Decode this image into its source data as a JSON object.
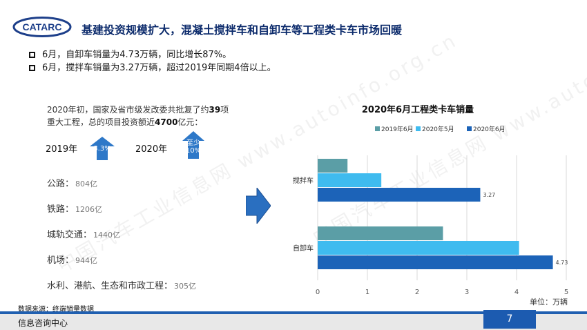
{
  "header": {
    "logo_text": "CATARC",
    "title": "基建投资规模扩大，混凝土搅拌车和自卸车等工程类卡车市场回暖"
  },
  "bullets": [
    "6月，自卸车销量为4.73万辆，同比增长87%。",
    "6月，搅拌车销量为3.27万辆，超过2019年同期4倍以上。"
  ],
  "intro": {
    "line1_pre": "2020年初，国家及省市级发改委共批复了约",
    "line1_num": "39",
    "line1_post": "项",
    "line2_pre": "重大工程，总的项目投资额近",
    "line2_num": "4700",
    "line2_post": "亿元："
  },
  "growth": {
    "year_a": "2019年",
    "badge_a": "8.3%",
    "year_b": "2020年",
    "badge_b_line1": "至少",
    "badge_b_line2": "10%"
  },
  "categories": [
    {
      "name": "公路：",
      "value": "804亿"
    },
    {
      "name": "铁路：",
      "value": "1206亿"
    },
    {
      "name": "城轨交通：",
      "value": "1440亿"
    },
    {
      "name": "机场：",
      "value": "944亿"
    },
    {
      "name": "水利、港航、生态和市政工程：",
      "value": "305亿"
    }
  ],
  "source": "数据来源：终端销量数据",
  "footer": {
    "label": "信息咨询中心",
    "page": "7"
  },
  "watermark": "中国汽车工业信息网 www.autoinfo.org.cn",
  "colors": {
    "series_2019": "#5b9ea6",
    "series_2020_05": "#3fbbef",
    "series_2020_06": "#1c63b8",
    "accent": "#1c5bb0"
  },
  "chart_data": {
    "type": "bar",
    "orientation": "horizontal",
    "title": "2020年6月工程类卡车销量",
    "categories": [
      "搅拌车",
      "自卸车"
    ],
    "series": [
      {
        "name": "2019年6月",
        "values": [
          0.6,
          2.52
        ]
      },
      {
        "name": "2020年5月",
        "values": [
          1.28,
          4.05
        ]
      },
      {
        "name": "2020年6月",
        "values": [
          3.27,
          4.73
        ]
      }
    ],
    "data_labels": {
      "2020年6月": [
        "3.27",
        "4.73"
      ]
    },
    "xlim": [
      0,
      5
    ],
    "x_ticks": [
      "0",
      "1",
      "2",
      "3",
      "4",
      "5"
    ],
    "unit_label": "单位：万辆",
    "grid": "vertical",
    "legend_position": "top"
  }
}
